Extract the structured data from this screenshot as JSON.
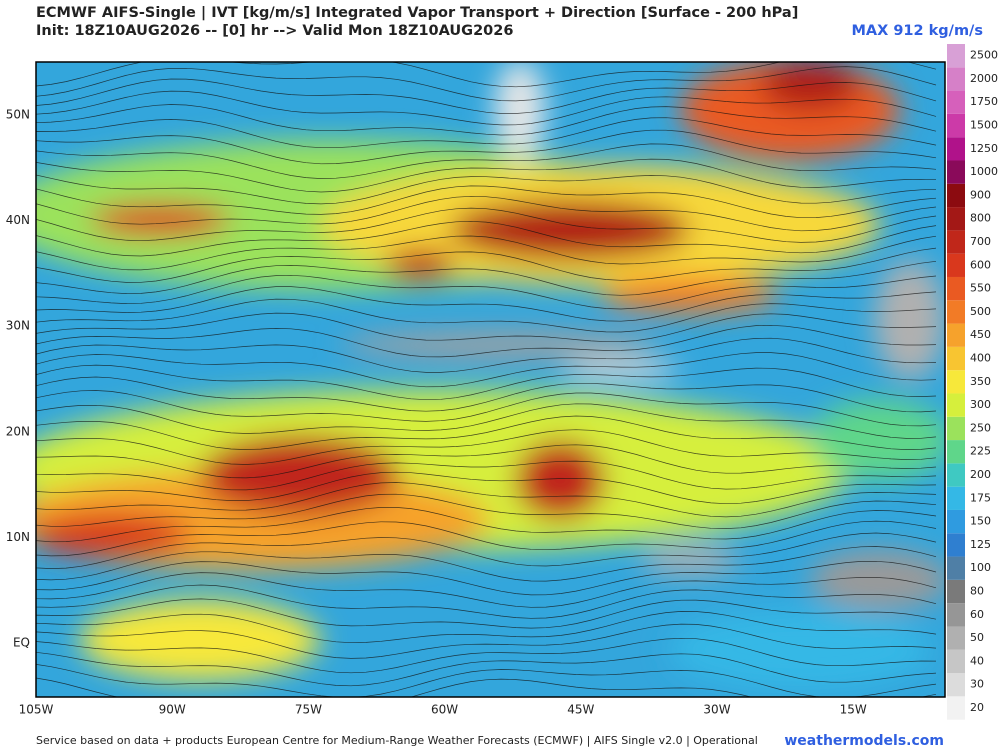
{
  "header": {
    "title": "ECMWF AIFS-Single | IVT [kg/m/s] Integrated Vapor Transport + Direction [Surface - 200 hPa]",
    "init": "Init: 18Z10AUG2026 -- [0] hr --> Valid Mon 18Z10AUG2026",
    "max": "MAX 912 kg/m/s"
  },
  "map": {
    "lat_labels": [
      "50N",
      "40N",
      "30N",
      "20N",
      "10N",
      "EQ"
    ],
    "lon_labels": [
      "105W",
      "90W",
      "75W",
      "60W",
      "45W",
      "30W",
      "15W"
    ]
  },
  "colorbar": {
    "levels": [
      20,
      30,
      40,
      50,
      60,
      80,
      100,
      125,
      150,
      175,
      200,
      225,
      250,
      300,
      350,
      400,
      450,
      500,
      550,
      600,
      700,
      800,
      900,
      1000,
      1250,
      1500,
      1750,
      2000,
      2500
    ],
    "colors": [
      "#f2f2f2",
      "#dcdcdc",
      "#c6c6c6",
      "#b0b0b0",
      "#969696",
      "#7a7a7a",
      "#4f7fa6",
      "#2f7fd0",
      "#2f9be0",
      "#34b8e6",
      "#3fc9c2",
      "#5fd68a",
      "#9be25c",
      "#d6ef3c",
      "#f7e83a",
      "#f8c531",
      "#f6a22c",
      "#f27b26",
      "#ea5a22",
      "#d9381d",
      "#c0271a",
      "#a31816",
      "#8c0b10",
      "#8a0a5a",
      "#b0128a",
      "#cc3aa8",
      "#d660bb",
      "#d680c8",
      "#d8a0d6"
    ]
  },
  "footer": {
    "credit": "Service based on data + products European Centre for Medium-Range Weather Forecasts (ECMWF) | AIFS Single v2.0 | Operational",
    "site": "weathermodels.com"
  }
}
